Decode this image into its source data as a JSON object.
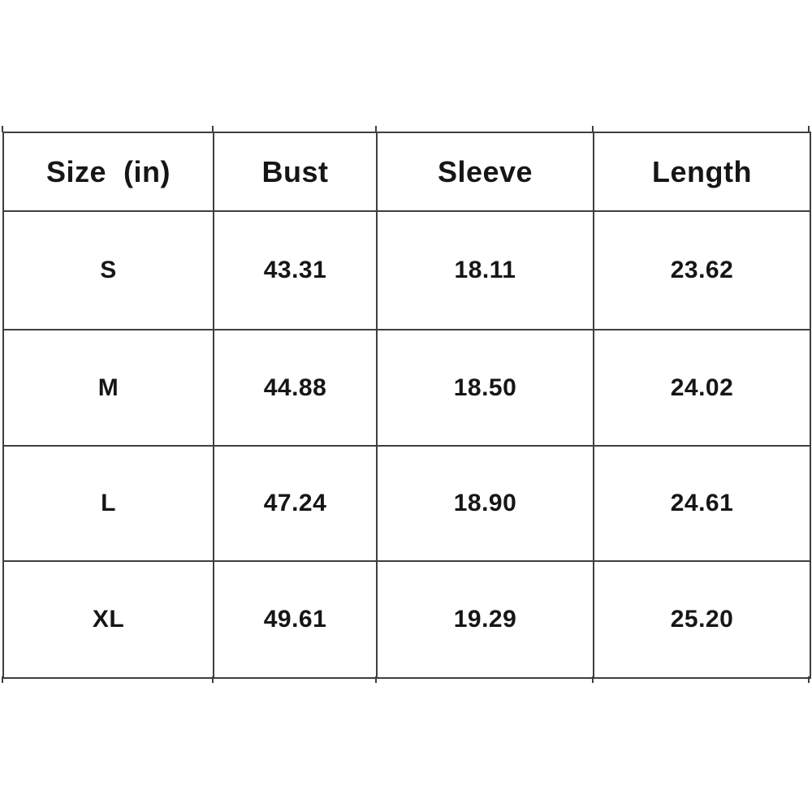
{
  "canvas": {
    "background": "#ffffff",
    "grid_line_color": "#3f3f3f",
    "text_color": "#161616"
  },
  "chart_data": {
    "type": "table",
    "columns": [
      "Size  (in)",
      "Bust",
      "Sleeve",
      "Length"
    ],
    "rows": [
      [
        "S",
        "43.31",
        "18.11",
        "23.62"
      ],
      [
        "M",
        "44.88",
        "18.50",
        "24.02"
      ],
      [
        "L",
        "47.24",
        "18.90",
        "24.61"
      ],
      [
        "XL",
        "49.61",
        "19.29",
        "25.20"
      ]
    ],
    "layout": {
      "grid": true,
      "header_position": "top",
      "partial_fifth_row_hint": "vertical line stubs extend slightly past top and bottom borders"
    }
  }
}
